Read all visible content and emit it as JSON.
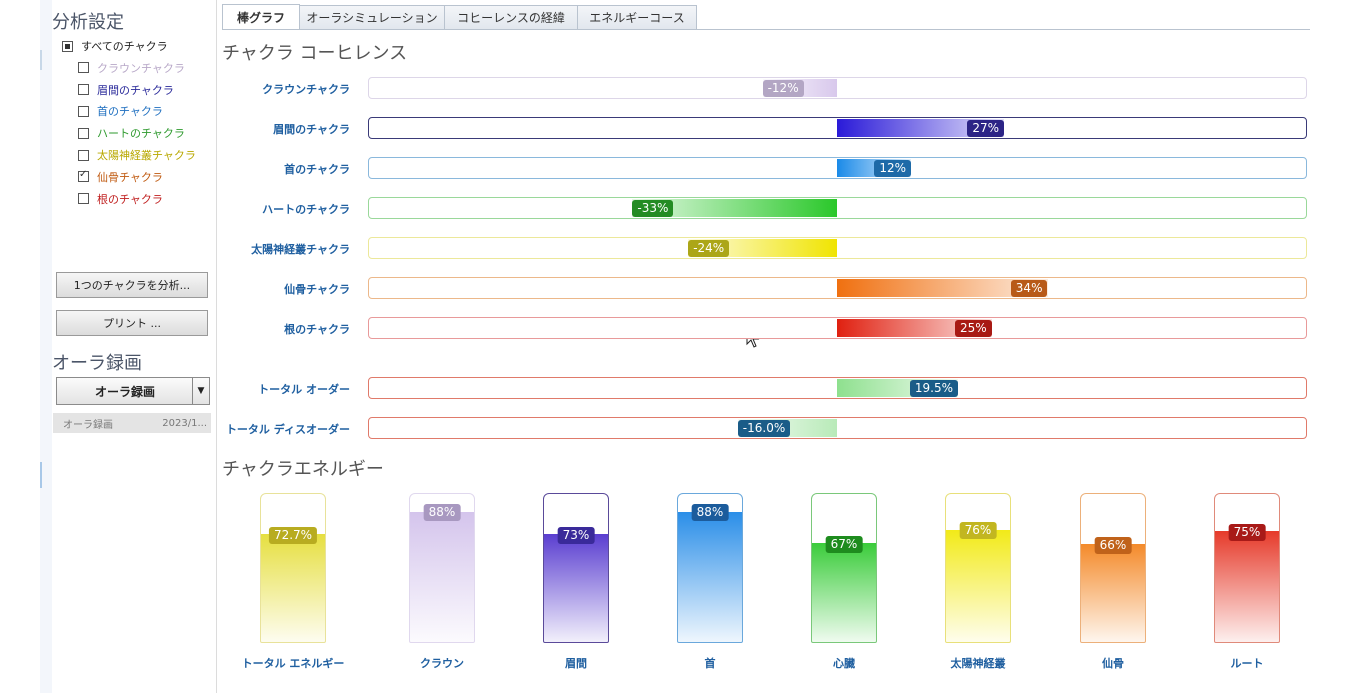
{
  "sidebar": {
    "settings_title": "分析設定",
    "tree": [
      {
        "label": "すべてのチャクラ",
        "state": "partial",
        "color": "#222222"
      },
      {
        "label": "クラウンチャクラ",
        "state": "unchecked",
        "color": "#b8a8c8"
      },
      {
        "label": "眉間のチャクラ",
        "state": "unchecked",
        "color": "#2a2a9a"
      },
      {
        "label": "首のチャクラ",
        "state": "unchecked",
        "color": "#2070c0"
      },
      {
        "label": "ハートのチャクラ",
        "state": "unchecked",
        "color": "#2e9a2e"
      },
      {
        "label": "太陽神経叢チャクラ",
        "state": "unchecked",
        "color": "#b8a800"
      },
      {
        "label": "仙骨チャクラ",
        "state": "checked",
        "color": "#c05a10"
      },
      {
        "label": "根のチャクラ",
        "state": "unchecked",
        "color": "#c02020"
      }
    ],
    "analyze_button": "1つのチャクラを分析...",
    "print_button": "プリント ...",
    "recording_title": "オーラ録画",
    "recording_dropdown": "オーラ録画",
    "recording_item": {
      "name": "オーラ録画",
      "date": "2023/1..."
    }
  },
  "tabs": [
    "棒グラフ",
    "オーラシミュレーション",
    "コヒーレンスの経緯",
    "エネルギーコース"
  ],
  "active_tab": 0,
  "coherence": {
    "title": "チャクラ コーヒレンス",
    "rows": [
      {
        "label": "クラウンチャクラ",
        "value": -12,
        "text": "-12%",
        "color": "#d8c8ec",
        "badge": "#b3a6c4",
        "border": "#ddd6e8"
      },
      {
        "label": "眉間のチャクラ",
        "value": 27,
        "text": "27%",
        "color": "#2a1ad8",
        "badge": "#2c2486",
        "border": "#3a3a78"
      },
      {
        "label": "首のチャクラ",
        "value": 12,
        "text": "12%",
        "color": "#1a8ae8",
        "badge": "#1e6aa8",
        "border": "#8ab8dc"
      },
      {
        "label": "ハートのチャクラ",
        "value": -33,
        "text": "-33%",
        "color": "#2ac82a",
        "badge": "#248c24",
        "border": "#9ad89a"
      },
      {
        "label": "太陽神経叢チャクラ",
        "value": -24,
        "text": "-24%",
        "color": "#f0e400",
        "badge": "#aca618",
        "border": "#ece89a"
      },
      {
        "label": "仙骨チャクラ",
        "value": 34,
        "text": "34%",
        "color": "#f07010",
        "badge": "#b85a18",
        "border": "#ecb88a"
      },
      {
        "label": "根のチャクラ",
        "value": 25,
        "text": "25%",
        "color": "#e02010",
        "badge": "#a81a14",
        "border": "#e89a9a"
      }
    ],
    "totals": [
      {
        "label": "トータル オーダー",
        "value": 19.5,
        "text": "19.5%",
        "color": "#8ee08e",
        "badge": "#1a5c88",
        "border": "#e07a6a"
      },
      {
        "label": "トータル ディスオーダー",
        "value": -16.0,
        "text": "-16.0%",
        "color": "#b8eab8",
        "badge": "#1a5c88",
        "border": "#e07a6a"
      }
    ]
  },
  "energy": {
    "title": "チャクラエネルギー",
    "columns": [
      {
        "label": "トータル エネルギー",
        "value": 72.7,
        "text": "72.7%",
        "color": "#e6df40",
        "badge": "#b8ac20",
        "border": "#e8e29a"
      },
      {
        "label": "クラウン",
        "value": 88,
        "text": "88%",
        "color": "#d4c4ec",
        "badge": "#a898c0",
        "border": "#e0d8ee"
      },
      {
        "label": "眉間",
        "value": 73,
        "text": "73%",
        "color": "#5a3ed0",
        "badge": "#3a2a9a",
        "border": "#5a4a9a"
      },
      {
        "label": "首",
        "value": 88,
        "text": "88%",
        "color": "#2a8ee8",
        "badge": "#1c5c9c",
        "border": "#6aa8dc"
      },
      {
        "label": "心臓",
        "value": 67,
        "text": "67%",
        "color": "#3acc3a",
        "badge": "#1e8c1e",
        "border": "#7ac87a"
      },
      {
        "label": "太陽神経叢",
        "value": 76,
        "text": "76%",
        "color": "#f2ea18",
        "badge": "#c2b620",
        "border": "#e8e07a"
      },
      {
        "label": "仙骨",
        "value": 66,
        "text": "66%",
        "color": "#f48a2a",
        "badge": "#c0621a",
        "border": "#ecb07a"
      },
      {
        "label": "ルート",
        "value": 75,
        "text": "75%",
        "color": "#e63a2a",
        "badge": "#a81a18",
        "border": "#e08a7a"
      }
    ]
  }
}
